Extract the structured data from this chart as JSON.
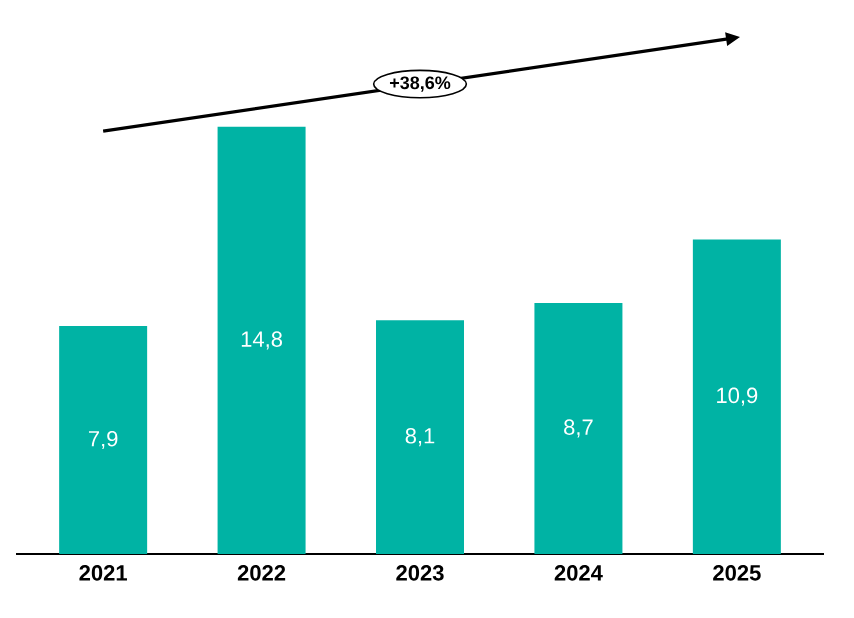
{
  "chart_data": {
    "type": "bar",
    "categories": [
      "2021",
      "2022",
      "2023",
      "2024",
      "2025"
    ],
    "values": [
      7.9,
      14.8,
      8.1,
      8.7,
      10.9
    ],
    "value_labels": [
      "7,9",
      "14,8",
      "8,1",
      "8,7",
      "10,9"
    ],
    "color": "#00b3a4",
    "annotations": [
      "+38,6%"
    ]
  }
}
